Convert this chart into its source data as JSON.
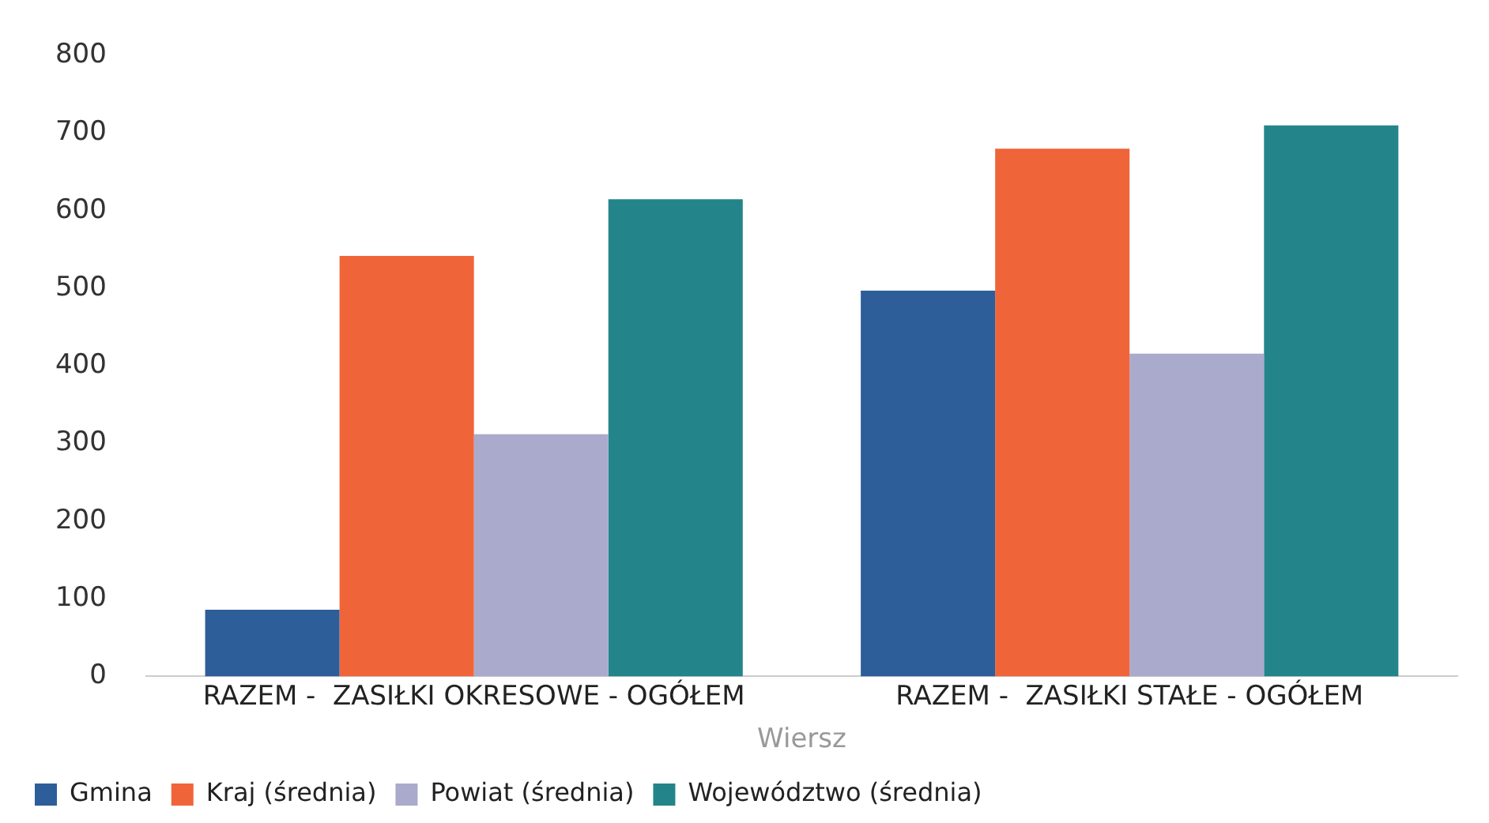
{
  "chart_data": {
    "type": "bar",
    "xlabel": "Wiersz",
    "categories": [
      "RAZEM -  ZASIŁKI OKRESOWE - OGÓŁEM",
      "RAZEM -  ZASIŁKI STAŁE - OGÓŁEM"
    ],
    "series": [
      {
        "name": "Gmina",
        "color": "#2e5e9a",
        "values": [
          86,
          497
        ]
      },
      {
        "name": "Kraj (średnia)",
        "color": "#f0643a",
        "values": [
          542,
          680
        ]
      },
      {
        "name": "Powiat (średnia)",
        "color": "#aaaacc",
        "values": [
          312,
          416
        ]
      },
      {
        "name": "Województwo (średnia)",
        "color": "#23858a",
        "values": [
          615,
          710
        ]
      }
    ],
    "ylim": [
      0,
      800
    ],
    "yticks": [
      0,
      100,
      200,
      300,
      400,
      500,
      600,
      700,
      800
    ],
    "grid": false,
    "legend": "bottom"
  }
}
